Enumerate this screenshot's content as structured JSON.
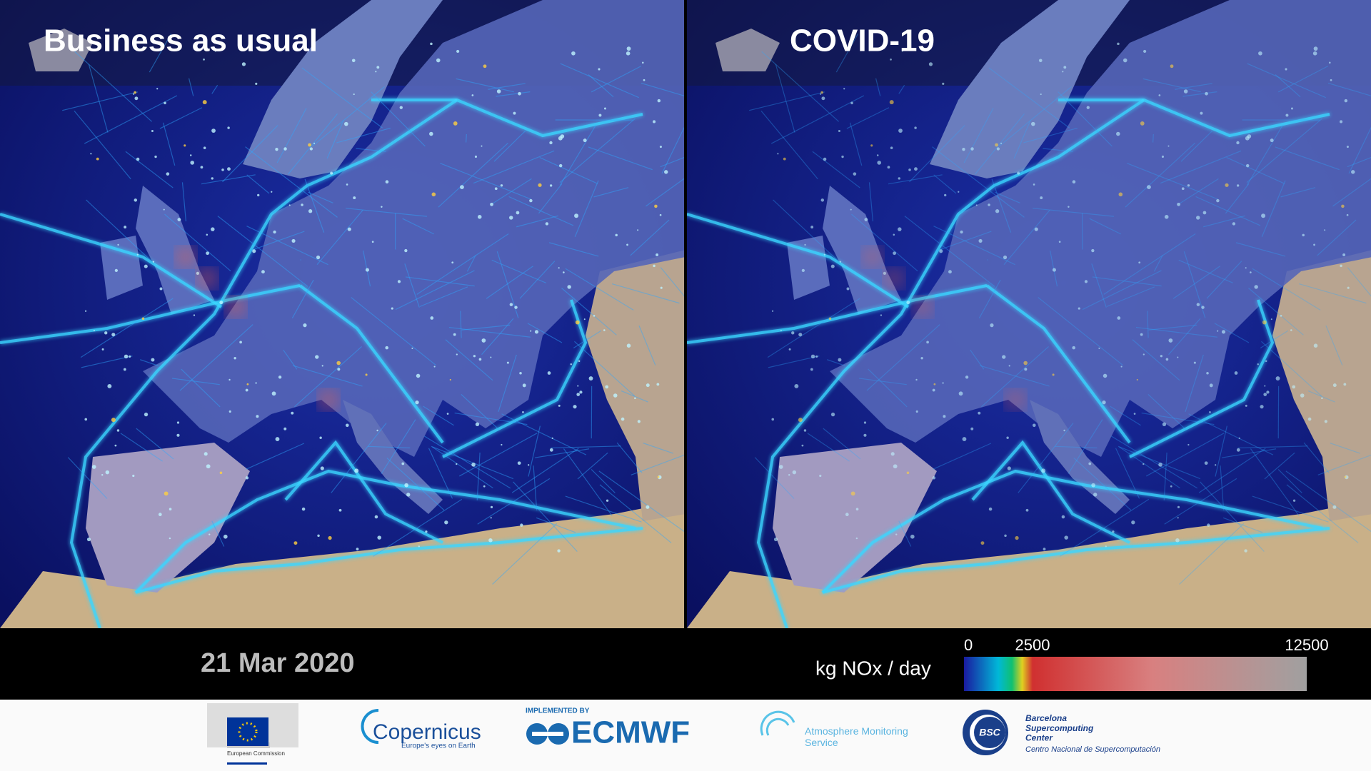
{
  "panels": [
    {
      "title": "Business as usual"
    },
    {
      "title": "COVID-19"
    }
  ],
  "date": "21 Mar 2020",
  "colorbar": {
    "label": "kg NOx / day",
    "range": [
      0,
      12500
    ],
    "ticks": [
      0,
      2500,
      12500
    ],
    "colors": [
      "#1a1aa0",
      "#00b8d8",
      "#10c070",
      "#e0d020",
      "#d03030",
      "#d88080",
      "#a0a0a0"
    ]
  },
  "logos": {
    "ec": "European Commission",
    "copernicus": "Copernicus",
    "copernicus_tagline": "Europe's eyes on Earth",
    "implemented_by": "IMPLEMENTED BY",
    "ecmwf": "ECMWF",
    "cams": "Atmosphere Monitoring Service",
    "bsc": "BSC",
    "bsc_name": "Barcelona Supercomputing Center",
    "bsc_sub": "Centro Nacional de Supercomputación"
  }
}
